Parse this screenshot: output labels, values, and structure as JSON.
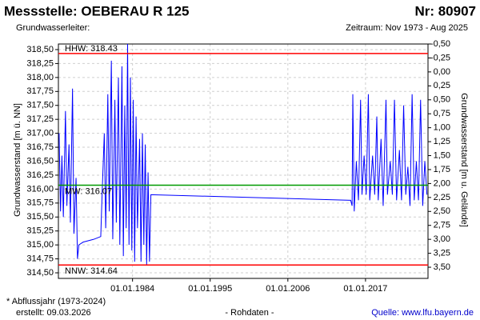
{
  "chart_data": {
    "type": "line",
    "title": "Messstelle: OEBERAU R 125",
    "station_number": "Nr: 80907",
    "aquifer": "Grundwasserleiter:",
    "period": "Zeitraum: Nov 1973 - Aug 2025",
    "ylabel": "Grundwasserstand [m ü. NN]",
    "y2label": "Grundwasserstand [m u. Gelände]",
    "footnote": "* Abflussjahr (1973-2024)",
    "created": "erstellt:  09.03.2026",
    "data_kind": "- Rohdaten -",
    "source": "Quelle: www.lfu.bayern.de",
    "grid": true,
    "xlim": [
      1973.5,
      2025.85
    ],
    "xticks": [
      {
        "value": 1984,
        "label": "01.01.1984"
      },
      {
        "value": 1995,
        "label": "01.01.1995"
      },
      {
        "value": 2006,
        "label": "01.01.2006"
      },
      {
        "value": 2017,
        "label": "01.01.2017"
      }
    ],
    "ylim": [
      314.4,
      318.6
    ],
    "yticks": [
      {
        "value": 314.5,
        "label": "314,50"
      },
      {
        "value": 314.75,
        "label": "314,75"
      },
      {
        "value": 315,
        "label": "315,00"
      },
      {
        "value": 315.25,
        "label": "315,25"
      },
      {
        "value": 315.5,
        "label": "315,50"
      },
      {
        "value": 315.75,
        "label": "315,75"
      },
      {
        "value": 316,
        "label": "316,00"
      },
      {
        "value": 316.25,
        "label": "316,25"
      },
      {
        "value": 316.5,
        "label": "316,50"
      },
      {
        "value": 316.75,
        "label": "316,75"
      },
      {
        "value": 317,
        "label": "317,00"
      },
      {
        "value": 317.25,
        "label": "317,25"
      },
      {
        "value": 317.5,
        "label": "317,50"
      },
      {
        "value": 317.75,
        "label": "317,75"
      },
      {
        "value": 318,
        "label": "318,00"
      },
      {
        "value": 318.25,
        "label": "318,25"
      },
      {
        "value": 318.5,
        "label": "318,50"
      }
    ],
    "y2lim": [
      3.7,
      -0.5
    ],
    "y2ticks": [
      {
        "value": -0.5,
        "label": "-0,50"
      },
      {
        "value": -0.25,
        "label": "-0,25"
      },
      {
        "value": 0,
        "label": "0,00"
      },
      {
        "value": 0.25,
        "label": "0,25"
      },
      {
        "value": 0.5,
        "label": "0,50"
      },
      {
        "value": 0.75,
        "label": "0,75"
      },
      {
        "value": 1,
        "label": "1,00"
      },
      {
        "value": 1.25,
        "label": "1,25"
      },
      {
        "value": 1.5,
        "label": "1,50"
      },
      {
        "value": 1.75,
        "label": "1,75"
      },
      {
        "value": 2,
        "label": "2,00"
      },
      {
        "value": 2.25,
        "label": "2,25"
      },
      {
        "value": 2.5,
        "label": "2,50"
      },
      {
        "value": 2.75,
        "label": "2,75"
      },
      {
        "value": 3,
        "label": "3,00"
      },
      {
        "value": 3.25,
        "label": "3,25"
      },
      {
        "value": 3.5,
        "label": "3,50"
      }
    ],
    "reference_lines": [
      {
        "label": "HHW: 318.43",
        "value": 318.43,
        "color": "#ff0000"
      },
      {
        "label": "MW: 316.07",
        "value": 316.07,
        "color": "#009900"
      },
      {
        "label": "NNW: 314.64",
        "value": 314.64,
        "color": "#ff0000"
      }
    ],
    "series": [
      {
        "color": "#0000ff",
        "x": [
          1973.6,
          1973.8,
          1974.0,
          1974.2,
          1974.5,
          1974.7,
          1975.0,
          1975.2,
          1975.5,
          1975.7,
          1976.0,
          1976.2,
          1976.4,
          1977.0,
          1978.5,
          1979.5,
          1979.7,
          1980.0,
          1980.2,
          1980.5,
          1980.7,
          1981.0,
          1981.2,
          1981.5,
          1981.7,
          1982.0,
          1982.2,
          1982.5,
          1982.7,
          1982.9,
          1983.1,
          1983.3,
          1983.5,
          1983.7,
          1983.9,
          1984.1,
          1984.3,
          1984.5,
          1984.7,
          1985.0,
          1985.2,
          1985.4,
          1985.6,
          1985.8,
          1986.0,
          1986.2,
          1986.4,
          1986.6,
          2014.9,
          2015.1,
          2015.2,
          2015.4,
          2015.7,
          2016.0,
          2016.3,
          2016.5,
          2016.8,
          2017.1,
          2017.4,
          2017.6,
          2018.0,
          2018.3,
          2018.6,
          2018.8,
          2019.2,
          2019.5,
          2019.9,
          2020.1,
          2020.5,
          2020.8,
          2021.1,
          2021.4,
          2021.8,
          2022.1,
          2022.4,
          2022.7,
          2023.0,
          2023.3,
          2023.6,
          2023.9,
          2024.2,
          2024.5,
          2024.8,
          2025.1,
          2025.4,
          2025.7
        ],
        "values": [
          317.0,
          315.6,
          316.6,
          315.5,
          317.4,
          315.7,
          316.8,
          315.4,
          317.8,
          315.2,
          316.2,
          314.75,
          315.0,
          315.05,
          315.1,
          315.15,
          315.95,
          317.0,
          315.3,
          317.7,
          315.6,
          318.3,
          315.1,
          317.6,
          315.4,
          318.0,
          315.0,
          318.2,
          314.8,
          317.5,
          315.3,
          318.6,
          315.0,
          318.0,
          314.9,
          317.6,
          314.7,
          317.3,
          315.3,
          316.9,
          314.7,
          317.0,
          315.0,
          316.8,
          314.65,
          316.3,
          314.7,
          315.9,
          315.8,
          315.7,
          317.7,
          315.6,
          316.5,
          315.8,
          317.6,
          315.9,
          316.6,
          315.9,
          317.7,
          315.8,
          316.6,
          315.9,
          317.3,
          315.8,
          316.9,
          315.7,
          317.6,
          315.9,
          316.5,
          315.9,
          317.6,
          315.8,
          316.7,
          315.8,
          317.5,
          315.9,
          316.4,
          315.7,
          317.7,
          315.8,
          316.5,
          315.8,
          317.6,
          315.7,
          316.5,
          315.9
        ]
      }
    ]
  }
}
